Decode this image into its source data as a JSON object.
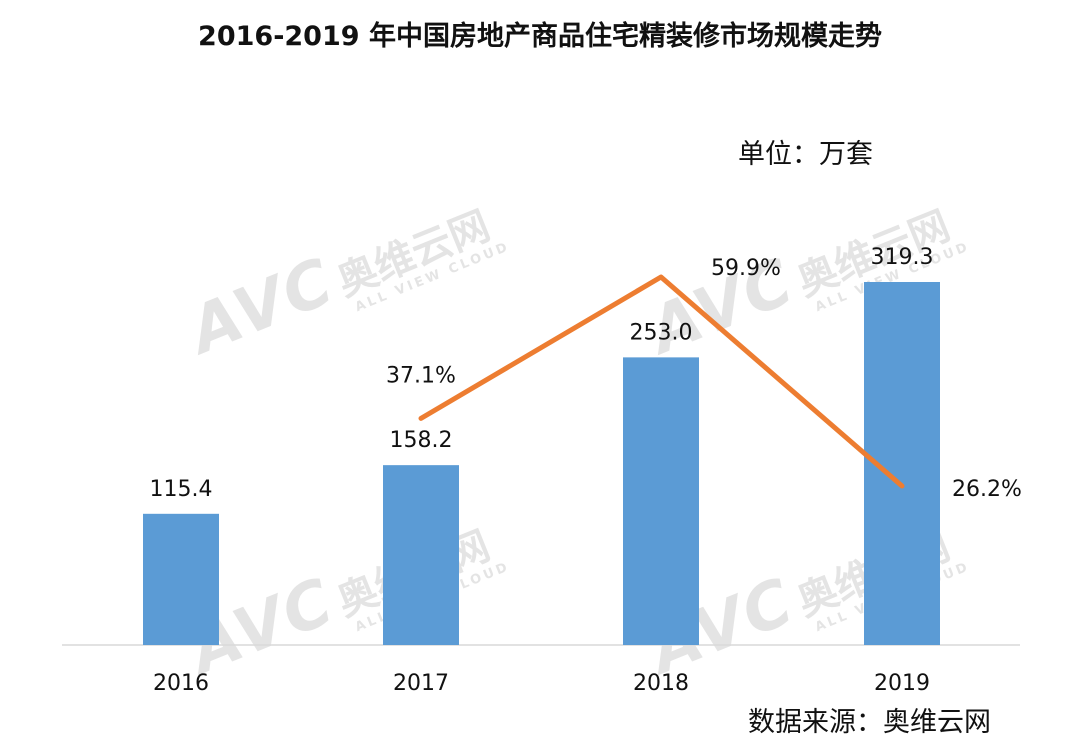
{
  "title": "2016-2019 年中国房地产商品住宅精装修市场规模走势",
  "unit": "单位：万套",
  "source": "数据来源：奥维云网",
  "watermark": {
    "logo": "AVC",
    "name": "奥维云网",
    "sub": "ALL VIEW CLOUD"
  },
  "colors": {
    "bar": "#5b9bd5",
    "line": "#ed7d31",
    "axis": "#d9d9d9",
    "text": "#111111"
  },
  "chart_data": {
    "type": "bar",
    "title": "2016-2019 年中国房地产商品住宅精装修市场规模走势",
    "xlabel": "",
    "ylabel": "",
    "categories": [
      "2016",
      "2017",
      "2018",
      "2019"
    ],
    "series": [
      {
        "values": [
          115.4,
          158.2,
          253.0,
          319.3
        ],
        "labels": [
          "115.4",
          "158.2",
          "253.0",
          "319.3"
        ]
      }
    ],
    "line_series": [
      {
        "values": [
          null,
          37.1,
          59.9,
          26.2
        ],
        "labels": [
          "",
          "37.1%",
          "59.9%",
          "26.2%"
        ]
      }
    ],
    "ylim": [
      0,
      350
    ],
    "grid": false,
    "legend": "none"
  }
}
